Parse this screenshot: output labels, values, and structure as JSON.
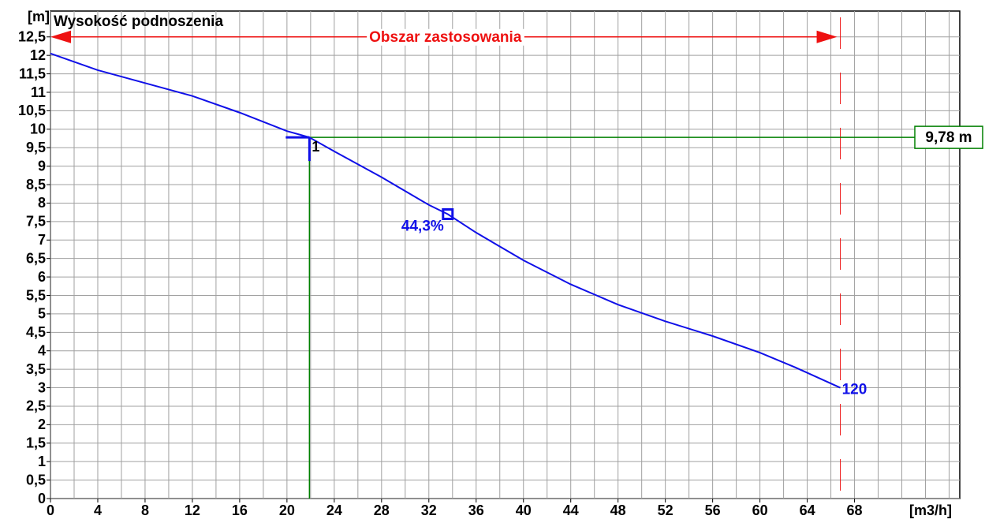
{
  "chart_data": {
    "type": "line",
    "title": "Wysokość podnoszenia",
    "y_unit": "[m]",
    "x_unit": "[m3/h]",
    "xlim": [
      0,
      76.9
    ],
    "ylim": [
      0,
      13.2
    ],
    "xticks": [
      0,
      4,
      8,
      12,
      16,
      20,
      24,
      28,
      32,
      36,
      40,
      44,
      48,
      52,
      56,
      60,
      64,
      68
    ],
    "xgrid": [
      2,
      6,
      10,
      14,
      18,
      22,
      26,
      30,
      34,
      38,
      42,
      46,
      50,
      54,
      58,
      62,
      66,
      70,
      72,
      74,
      76
    ],
    "yticks": [
      0,
      {
        "value": 0.5,
        "label": "0,5"
      },
      1,
      {
        "value": 1.5,
        "label": "1,5"
      },
      2,
      {
        "value": 2.5,
        "label": "2,5"
      },
      3,
      {
        "value": 3.5,
        "label": "3,5"
      },
      4,
      {
        "value": 4.5,
        "label": "4,5"
      },
      5,
      {
        "value": 5.5,
        "label": "5,5"
      },
      6,
      {
        "value": 6.5,
        "label": "6,5"
      },
      7,
      {
        "value": 7.5,
        "label": "7,5"
      },
      8,
      {
        "value": 8.5,
        "label": "8,5"
      },
      9,
      {
        "value": 9.5,
        "label": "9,5"
      },
      10,
      {
        "value": 10.5,
        "label": "10,5"
      },
      11,
      {
        "value": 11.5,
        "label": "11,5"
      },
      12,
      {
        "value": 12.5,
        "label": "12,5"
      }
    ],
    "grid": true,
    "series": [
      {
        "name": "120",
        "color": "#1010e8",
        "x": [
          0,
          4,
          8,
          12,
          16,
          20,
          21.9,
          24,
          28,
          32,
          33.6,
          36,
          40,
          44,
          48,
          52,
          56,
          60,
          63,
          66.8
        ],
        "values": [
          12.05,
          11.6,
          11.25,
          10.9,
          10.45,
          9.95,
          9.78,
          9.4,
          8.7,
          7.95,
          7.7,
          7.2,
          6.45,
          5.8,
          5.25,
          4.8,
          4.4,
          3.95,
          3.55,
          3.0
        ]
      }
    ],
    "operating_point": {
      "label": "1",
      "x": 21.9,
      "y": 9.78,
      "value_label": "9,78 m",
      "color": "#008000"
    },
    "efficiency_point": {
      "x": 33.6,
      "y": 7.7,
      "value_label": "44,3%"
    },
    "application_range": {
      "label": "Obszar zastosowania",
      "x": [
        0,
        66.8
      ],
      "y": 12.5,
      "color": "#ee1111"
    }
  }
}
